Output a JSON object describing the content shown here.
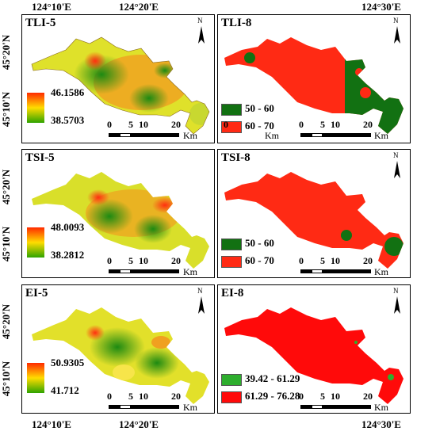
{
  "top_ticks": [
    "124°10'E",
    "124°20'E",
    "124°30'E"
  ],
  "bottom_ticks": [
    "124°10'E",
    "124°20'E",
    "124°30'E"
  ],
  "left_ticks": [
    "45°20'N",
    "45°10'N",
    "45°20'N",
    "45°10'N",
    "45°20'N",
    "45°10'N"
  ],
  "colors": {
    "red": "#ff2a14",
    "green": "#127112",
    "light_green": "#2eae2e",
    "border": "#000000"
  },
  "panels": [
    {
      "title": "TLI-5",
      "kind": "gradient",
      "max": "46.1586",
      "min": "38.5703"
    },
    {
      "title": "TLI-8",
      "kind": "classes",
      "classes": [
        {
          "label": "50 - 60",
          "color": "#127112"
        },
        {
          "label": "60 - 70",
          "color": "#ff2a14"
        }
      ]
    },
    {
      "title": "TSI-5",
      "kind": "gradient",
      "max": "48.0093",
      "min": "38.2812"
    },
    {
      "title": "TSI-8",
      "kind": "classes",
      "classes": [
        {
          "label": "50 - 60",
          "color": "#127112"
        },
        {
          "label": "60 - 70",
          "color": "#ff2a14"
        }
      ]
    },
    {
      "title": "EI-5",
      "kind": "gradient",
      "max": "50.9305",
      "min": "41.712"
    },
    {
      "title": "EI-8",
      "kind": "classes",
      "classes": [
        {
          "label": "39.42 - 61.29",
          "color": "#2eae2e"
        },
        {
          "label": "61.29 - 76.28",
          "color": "#ff0a0a"
        }
      ]
    }
  ],
  "scalebar": {
    "ticks": [
      "0",
      "5",
      "10",
      "20"
    ],
    "unit": "Km"
  },
  "north_label": "N"
}
